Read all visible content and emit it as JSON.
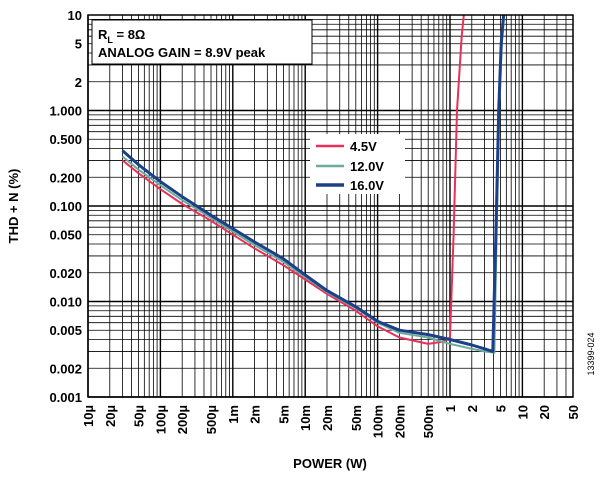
{
  "chart_data": {
    "type": "line",
    "xlabel": "POWER (W)",
    "ylabel": "THD + N (%)",
    "xscale": "log",
    "yscale": "log",
    "xlim": [
      1e-05,
      50
    ],
    "ylim": [
      0.001,
      10
    ],
    "grid": true,
    "legend_position": "center",
    "x_ticks": [
      {
        "value": 1e-05,
        "label": "10µ"
      },
      {
        "value": 2e-05,
        "label": "20µ"
      },
      {
        "value": 5e-05,
        "label": "50µ"
      },
      {
        "value": 0.0001,
        "label": "100µ"
      },
      {
        "value": 0.0002,
        "label": "200µ"
      },
      {
        "value": 0.0005,
        "label": "500µ"
      },
      {
        "value": 0.001,
        "label": "1m"
      },
      {
        "value": 0.002,
        "label": "2m"
      },
      {
        "value": 0.005,
        "label": "5m"
      },
      {
        "value": 0.01,
        "label": "10m"
      },
      {
        "value": 0.02,
        "label": "20m"
      },
      {
        "value": 0.05,
        "label": "50m"
      },
      {
        "value": 0.1,
        "label": "100m"
      },
      {
        "value": 0.2,
        "label": "200m"
      },
      {
        "value": 0.5,
        "label": "500m"
      },
      {
        "value": 1,
        "label": "1"
      },
      {
        "value": 2,
        "label": "2"
      },
      {
        "value": 5,
        "label": "5"
      },
      {
        "value": 10,
        "label": "10"
      },
      {
        "value": 20,
        "label": "20"
      },
      {
        "value": 50,
        "label": "50"
      }
    ],
    "y_ticks": [
      {
        "value": 10,
        "label": "10"
      },
      {
        "value": 5,
        "label": "5"
      },
      {
        "value": 2,
        "label": "2"
      },
      {
        "value": 1,
        "label": "1.000"
      },
      {
        "value": 0.5,
        "label": "0.500"
      },
      {
        "value": 0.2,
        "label": "0.200"
      },
      {
        "value": 0.1,
        "label": "0.100"
      },
      {
        "value": 0.05,
        "label": "0.050"
      },
      {
        "value": 0.02,
        "label": "0.020"
      },
      {
        "value": 0.01,
        "label": "0.010"
      },
      {
        "value": 0.005,
        "label": "0.005"
      },
      {
        "value": 0.002,
        "label": "0.002"
      },
      {
        "value": 0.001,
        "label": "0.001"
      }
    ],
    "annotations": [
      "R",
      "L",
      " = 8Ω",
      "ANALOG GAIN = 8.9V peak"
    ],
    "series": [
      {
        "name": "4.5V",
        "color": "#e8305a",
        "points": [
          [
            3e-05,
            0.3
          ],
          [
            5e-05,
            0.22
          ],
          [
            0.0001,
            0.15
          ],
          [
            0.0002,
            0.105
          ],
          [
            0.0005,
            0.07
          ],
          [
            0.001,
            0.05
          ],
          [
            0.002,
            0.036
          ],
          [
            0.005,
            0.024
          ],
          [
            0.01,
            0.017
          ],
          [
            0.02,
            0.012
          ],
          [
            0.05,
            0.008
          ],
          [
            0.1,
            0.0055
          ],
          [
            0.2,
            0.0042
          ],
          [
            0.5,
            0.0036
          ],
          [
            0.8,
            0.0038
          ],
          [
            1.0,
            0.0042
          ],
          [
            1.12,
            0.05
          ],
          [
            1.25,
            1.0
          ],
          [
            1.35,
            2.5
          ],
          [
            1.45,
            6
          ],
          [
            1.55,
            10
          ]
        ]
      },
      {
        "name": "12.0V",
        "color": "#6aab9a",
        "points": [
          [
            3e-05,
            0.33
          ],
          [
            5e-05,
            0.24
          ],
          [
            0.0001,
            0.165
          ],
          [
            0.0002,
            0.115
          ],
          [
            0.0005,
            0.075
          ],
          [
            0.001,
            0.054
          ],
          [
            0.002,
            0.039
          ],
          [
            0.005,
            0.026
          ],
          [
            0.01,
            0.018
          ],
          [
            0.02,
            0.0125
          ],
          [
            0.05,
            0.0085
          ],
          [
            0.1,
            0.006
          ],
          [
            0.2,
            0.0047
          ],
          [
            0.5,
            0.0042
          ],
          [
            1.0,
            0.0036
          ],
          [
            2.0,
            0.0032
          ],
          [
            3.0,
            0.003
          ],
          [
            4.1,
            0.0029
          ],
          [
            4.4,
            0.05
          ],
          [
            4.8,
            1.0
          ],
          [
            5.2,
            5.0
          ],
          [
            5.6,
            10
          ]
        ]
      },
      {
        "name": "16.0V",
        "color": "#1c3f8a",
        "points": [
          [
            3e-05,
            0.38
          ],
          [
            5e-05,
            0.27
          ],
          [
            0.0001,
            0.18
          ],
          [
            0.0002,
            0.125
          ],
          [
            0.0005,
            0.08
          ],
          [
            0.001,
            0.058
          ],
          [
            0.002,
            0.042
          ],
          [
            0.005,
            0.028
          ],
          [
            0.01,
            0.019
          ],
          [
            0.02,
            0.013
          ],
          [
            0.05,
            0.0088
          ],
          [
            0.1,
            0.0062
          ],
          [
            0.2,
            0.005
          ],
          [
            0.5,
            0.0045
          ],
          [
            1.0,
            0.004
          ],
          [
            2.0,
            0.0035
          ],
          [
            3.0,
            0.0032
          ],
          [
            3.9,
            0.003
          ],
          [
            4.3,
            0.05
          ],
          [
            4.7,
            1.0
          ],
          [
            5.1,
            5.0
          ],
          [
            5.5,
            10
          ]
        ]
      }
    ]
  },
  "figure_id": "13399-024"
}
